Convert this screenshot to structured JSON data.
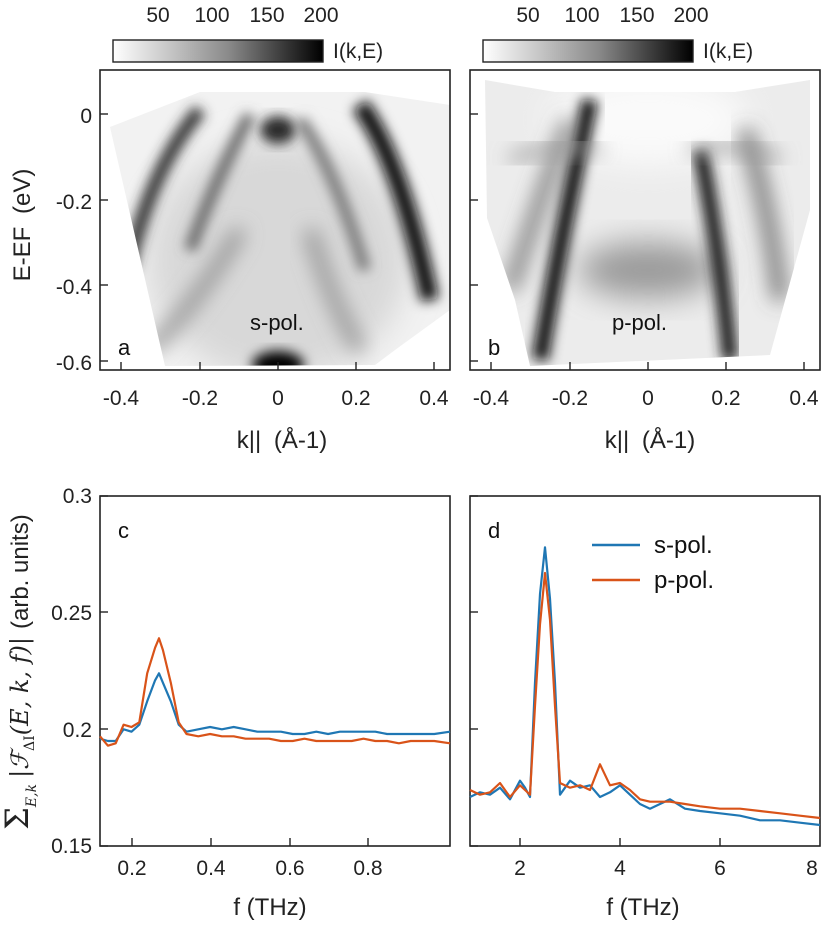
{
  "colorbar": {
    "ticks": [
      "50",
      "100",
      "150",
      "200"
    ],
    "label": "I(k,E)"
  },
  "chart_data": [
    {
      "panel": "a",
      "type": "heatmap",
      "annotation": "s-pol.",
      "xlabel": "k||",
      "xlabel_unit": "(Å-1)",
      "ylabel": "E-EF",
      "ylabel_unit": "(eV)",
      "xlim": [
        -0.45,
        0.45
      ],
      "ylim": [
        -0.62,
        0.08
      ],
      "xticks": [
        "-0.4",
        "-0.2",
        "0",
        "0.2",
        "0.4"
      ],
      "yticks": [
        "0",
        "-0.2",
        "-0.4",
        "-0.6"
      ]
    },
    {
      "panel": "b",
      "type": "heatmap",
      "annotation": "p-pol.",
      "xlabel": "k||",
      "xlabel_unit": "(Å-1)",
      "xlim": [
        -0.45,
        0.45
      ],
      "ylim": [
        -0.62,
        0.08
      ],
      "xticks": [
        "-0.4",
        "-0.2",
        "0",
        "0.2",
        "0.4"
      ]
    },
    {
      "panel": "c",
      "type": "line",
      "xlabel": "f (THz)",
      "ylabel": "(arb. units)",
      "xlim": [
        0.11,
        1.0
      ],
      "ylim": [
        0.15,
        0.3
      ],
      "xticks": [
        "0.2",
        "0.4",
        "0.6",
        "0.8"
      ],
      "yticks": [
        "0.15",
        "0.2",
        "0.25",
        "0.3"
      ],
      "x": [
        0.11,
        0.13,
        0.15,
        0.17,
        0.19,
        0.21,
        0.23,
        0.25,
        0.26,
        0.27,
        0.29,
        0.31,
        0.33,
        0.36,
        0.39,
        0.42,
        0.45,
        0.48,
        0.51,
        0.54,
        0.57,
        0.6,
        0.63,
        0.66,
        0.69,
        0.72,
        0.75,
        0.78,
        0.81,
        0.84,
        0.87,
        0.9,
        0.93,
        0.96,
        1.0
      ],
      "series": [
        {
          "name": "s-pol.",
          "color": "#1f77b4",
          "values": [
            0.196,
            0.195,
            0.195,
            0.2,
            0.199,
            0.202,
            0.212,
            0.221,
            0.224,
            0.22,
            0.212,
            0.202,
            0.199,
            0.2,
            0.201,
            0.2,
            0.201,
            0.2,
            0.199,
            0.199,
            0.199,
            0.198,
            0.198,
            0.199,
            0.198,
            0.199,
            0.199,
            0.199,
            0.199,
            0.198,
            0.198,
            0.198,
            0.198,
            0.198,
            0.199
          ]
        },
        {
          "name": "p-pol.",
          "color": "#d95319",
          "values": [
            0.197,
            0.193,
            0.194,
            0.202,
            0.201,
            0.203,
            0.224,
            0.235,
            0.239,
            0.234,
            0.22,
            0.203,
            0.198,
            0.197,
            0.198,
            0.197,
            0.197,
            0.196,
            0.196,
            0.196,
            0.195,
            0.195,
            0.196,
            0.195,
            0.195,
            0.195,
            0.195,
            0.196,
            0.195,
            0.195,
            0.194,
            0.195,
            0.195,
            0.195,
            0.194
          ]
        }
      ]
    },
    {
      "panel": "d",
      "type": "line",
      "xlabel": "f (THz)",
      "xlim": [
        1,
        8
      ],
      "ylim": [
        0.15,
        0.3
      ],
      "xticks": [
        "2",
        "4",
        "6",
        "8"
      ],
      "x": [
        1.0,
        1.2,
        1.4,
        1.6,
        1.8,
        2.0,
        2.1,
        2.2,
        2.3,
        2.4,
        2.5,
        2.6,
        2.7,
        2.8,
        3.0,
        3.2,
        3.4,
        3.6,
        3.8,
        4.0,
        4.2,
        4.4,
        4.6,
        4.8,
        5.0,
        5.3,
        5.6,
        6.0,
        6.4,
        6.8,
        7.2,
        7.6,
        8.0
      ],
      "series": [
        {
          "name": "s-pol.",
          "color": "#1f77b4",
          "values": [
            0.171,
            0.173,
            0.172,
            0.175,
            0.17,
            0.178,
            0.175,
            0.171,
            0.22,
            0.258,
            0.278,
            0.256,
            0.22,
            0.172,
            0.178,
            0.175,
            0.176,
            0.171,
            0.173,
            0.176,
            0.172,
            0.168,
            0.166,
            0.168,
            0.17,
            0.166,
            0.165,
            0.164,
            0.163,
            0.161,
            0.161,
            0.16,
            0.159
          ]
        },
        {
          "name": "p-pol.",
          "color": "#d95319",
          "values": [
            0.174,
            0.172,
            0.173,
            0.177,
            0.171,
            0.176,
            0.174,
            0.172,
            0.21,
            0.245,
            0.267,
            0.247,
            0.21,
            0.177,
            0.175,
            0.176,
            0.174,
            0.185,
            0.176,
            0.177,
            0.174,
            0.17,
            0.169,
            0.169,
            0.169,
            0.168,
            0.167,
            0.166,
            0.166,
            0.165,
            0.164,
            0.163,
            0.162
          ]
        }
      ]
    }
  ]
}
